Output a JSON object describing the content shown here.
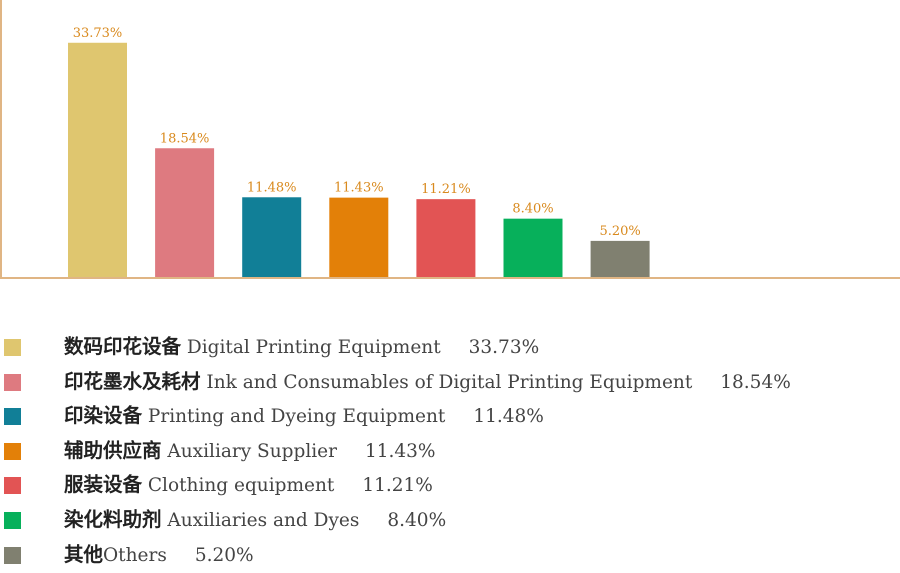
{
  "chart_data": {
    "type": "bar",
    "categories": [
      "数码印花设备 Digital Printing Equipment",
      "印花墨水及耗材 Ink and Consumables of Digital Printing Equipment",
      "印染设备 Printing and Dyeing Equipment",
      "辅助供应商 Auxiliary Supplier",
      "服装设备 Clothing equipment",
      "染化料助剂 Auxiliaries and Dyes",
      "其他Others"
    ],
    "values": [
      33.73,
      18.54,
      11.48,
      11.43,
      11.21,
      8.4,
      5.2
    ],
    "data_labels": [
      "33.73%",
      "18.54%",
      "11.48%",
      "11.43%",
      "11.21%",
      "8.40%",
      "5.20%"
    ],
    "colors": [
      "#dfc66f",
      "#de7a80",
      "#117f97",
      "#e38008",
      "#e25454",
      "#07b05b",
      "#808070"
    ],
    "ylim": [
      0,
      36
    ],
    "grid": false,
    "legend_position": "bottom"
  },
  "legend": {
    "items": [
      {
        "cn": "数码印花设备",
        "en": " Digital Printing Equipment",
        "value": "33.73%",
        "color": "#dfc66f"
      },
      {
        "cn": "印花墨水及耗材",
        "en": " Ink and Consumables of Digital Printing Equipment",
        "value": "18.54%",
        "color": "#de7a80"
      },
      {
        "cn": "印染设备",
        "en": " Printing and Dyeing Equipment",
        "value": "11.48%",
        "color": "#117f97"
      },
      {
        "cn": "辅助供应商",
        "en": " Auxiliary Supplier",
        "value": "11.43%",
        "color": "#e38008"
      },
      {
        "cn": "服装设备",
        "en": " Clothing equipment",
        "value": "11.21%",
        "color": "#e25454"
      },
      {
        "cn": "染化料助剂",
        "en": " Auxiliaries and Dyes",
        "value": "8.40%",
        "color": "#07b05b"
      },
      {
        "cn": "其他",
        "en": "Others",
        "value": "5.20%",
        "color": "#808070"
      }
    ]
  },
  "axis_color": "#e0b584",
  "label_color": "#d98a1e"
}
